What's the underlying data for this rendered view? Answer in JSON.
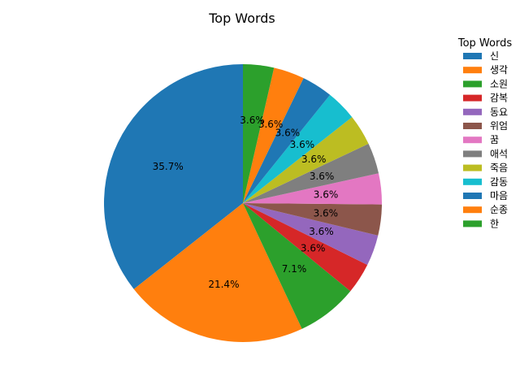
{
  "chart_data": {
    "type": "pie",
    "title": "Top Words",
    "legend_title": "Top Words",
    "legend_placement": "right",
    "start_angle_deg": 90,
    "direction": "counterclockwise",
    "slices": [
      {
        "label": "신",
        "value": 35.7,
        "pct_label": "35.7%",
        "color": "#1f77b4"
      },
      {
        "label": "생각",
        "value": 21.4,
        "pct_label": "21.4%",
        "color": "#ff7f0e"
      },
      {
        "label": "소원",
        "value": 7.1,
        "pct_label": "7.1%",
        "color": "#2ca02c"
      },
      {
        "label": "감복",
        "value": 3.6,
        "pct_label": "3.6%",
        "color": "#d62728"
      },
      {
        "label": "동요",
        "value": 3.6,
        "pct_label": "3.6%",
        "color": "#9467bd"
      },
      {
        "label": "위엄",
        "value": 3.6,
        "pct_label": "3.6%",
        "color": "#8c564b"
      },
      {
        "label": "꿈",
        "value": 3.6,
        "pct_label": "3.6%",
        "color": "#e377c2"
      },
      {
        "label": "애석",
        "value": 3.6,
        "pct_label": "3.6%",
        "color": "#7f7f7f"
      },
      {
        "label": "죽음",
        "value": 3.6,
        "pct_label": "3.6%",
        "color": "#bcbd22"
      },
      {
        "label": "감동",
        "value": 3.6,
        "pct_label": "3.6%",
        "color": "#17becf"
      },
      {
        "label": "마음",
        "value": 3.6,
        "pct_label": "3.6%",
        "color": "#1f77b4"
      },
      {
        "label": "순종",
        "value": 3.6,
        "pct_label": "3.6%",
        "color": "#ff7f0e"
      },
      {
        "label": "한",
        "value": 3.6,
        "pct_label": "3.6%",
        "color": "#2ca02c"
      }
    ]
  }
}
